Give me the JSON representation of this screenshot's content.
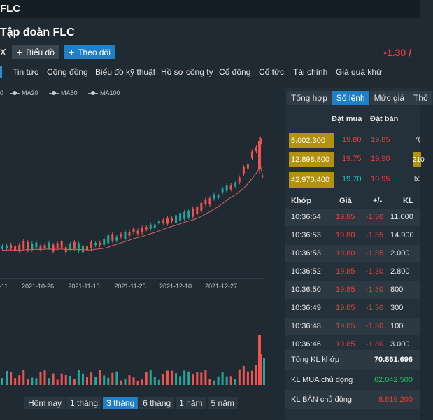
{
  "header": {
    "ticker": "FLC",
    "company_name": "Tập đoàn FLC",
    "exchange_fragment": "X",
    "price_change": "-1.30 /"
  },
  "actions": {
    "chart_label": "Biểu đồ",
    "follow_label": "Theo dõi"
  },
  "tabs": [
    "Tin tức",
    "Cộng đồng",
    "Biểu đồ kỹ thuật",
    "Hồ sơ công ty",
    "Cổ đông",
    "Cổ tức",
    "Tài chính",
    "Giá quá khứ"
  ],
  "legend": [
    "MA20",
    "MA50",
    "MA100"
  ],
  "legend_fragment": "0",
  "chart_data": {
    "type": "candlestick",
    "x_ticks": [
      "-11",
      "2021-10-26",
      "2021-11-10",
      "2021-11-25",
      "2021-12-10",
      "2021-12-27"
    ],
    "colors": {
      "up": "#26a69a",
      "down": "#ef5350",
      "ma": "#e0605e"
    }
  },
  "ranges": [
    {
      "label": "Hôm nay",
      "active": false
    },
    {
      "label": "1 tháng",
      "active": false
    },
    {
      "label": "3 tháng",
      "active": true
    },
    {
      "label": "6 tháng",
      "active": false
    },
    {
      "label": "1 năm",
      "active": false
    },
    {
      "label": "5 năm",
      "active": false
    }
  ],
  "panel": {
    "tabs": [
      {
        "label": "Tổng hợp",
        "active": false
      },
      {
        "label": "Sổ lệnh",
        "active": true
      },
      {
        "label": "Mức giá",
        "active": false
      },
      {
        "label": "Thố",
        "active": false
      }
    ],
    "orderbook_headers": {
      "buy": "Đặt mua",
      "sell": "Đặt bán"
    },
    "orderbook": [
      {
        "buy_vol": "5.002.300",
        "buy_price": "19.80",
        "sell_price": "19.85",
        "sell_vol": "7("
      },
      {
        "buy_vol": "12.898.800",
        "buy_price": "19.75",
        "sell_price": "19.90",
        "sell_vol": "210"
      },
      {
        "buy_vol": "42.970.400",
        "buy_price": "19.70",
        "sell_price": "19.95",
        "sell_vol": "5:"
      }
    ],
    "match_headers": {
      "time": "Khớp",
      "price": "Giá",
      "change": "+/-",
      "vol": "KL"
    },
    "matches": [
      {
        "time": "10:36:54",
        "price": "19.85",
        "change": "-1.30",
        "vol": "11.000"
      },
      {
        "time": "10:36:53",
        "price": "19.80",
        "change": "-1.35",
        "vol": "14.900"
      },
      {
        "time": "10:36:53",
        "price": "19.80",
        "change": "-1.35",
        "vol": "2.000"
      },
      {
        "time": "10:36:52",
        "price": "19.85",
        "change": "-1.30",
        "vol": "2.800"
      },
      {
        "time": "10:36:50",
        "price": "19.85",
        "change": "-1.30",
        "vol": "800"
      },
      {
        "time": "10:36:49",
        "price": "19.85",
        "change": "-1.30",
        "vol": "300"
      },
      {
        "time": "10:36:48",
        "price": "19.85",
        "change": "-1.30",
        "vol": "100"
      },
      {
        "time": "10:36:46",
        "price": "19.85",
        "change": "-1.30",
        "vol": "3.000"
      }
    ],
    "summary": [
      {
        "label": "Tổng KL khớp",
        "value": "70.861.696",
        "color": "#ffffff"
      },
      {
        "label": "KL MUA chủ động",
        "value": "62.042.500",
        "color": "#22c55e"
      },
      {
        "label": "KL BÁN chủ động",
        "value": "8.819.200",
        "color": "#f03a3a"
      }
    ]
  }
}
